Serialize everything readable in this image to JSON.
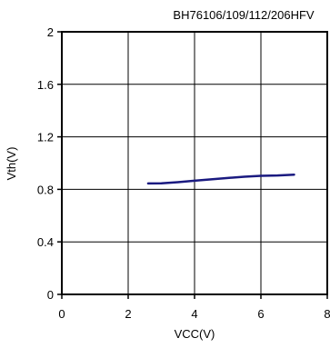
{
  "chart_data": {
    "type": "line",
    "title": "BH76106/109/112/206HFV",
    "xlabel": "VCC(V)",
    "ylabel": "Vth(V)",
    "xlim": [
      0,
      8
    ],
    "ylim": [
      0,
      2
    ],
    "xticks": [
      "0",
      "2",
      "4",
      "6",
      "8"
    ],
    "yticks": [
      "0",
      "0.4",
      "0.8",
      "1.2",
      "1.6",
      "2"
    ],
    "grid": true,
    "series": [
      {
        "color": "#1a1a80",
        "x": [
          2.6,
          3.0,
          3.5,
          4.0,
          4.5,
          5.0,
          5.5,
          6.0,
          6.5,
          7.0
        ],
        "y": [
          0.845,
          0.846,
          0.855,
          0.866,
          0.876,
          0.887,
          0.896,
          0.903,
          0.906,
          0.912
        ]
      }
    ]
  }
}
